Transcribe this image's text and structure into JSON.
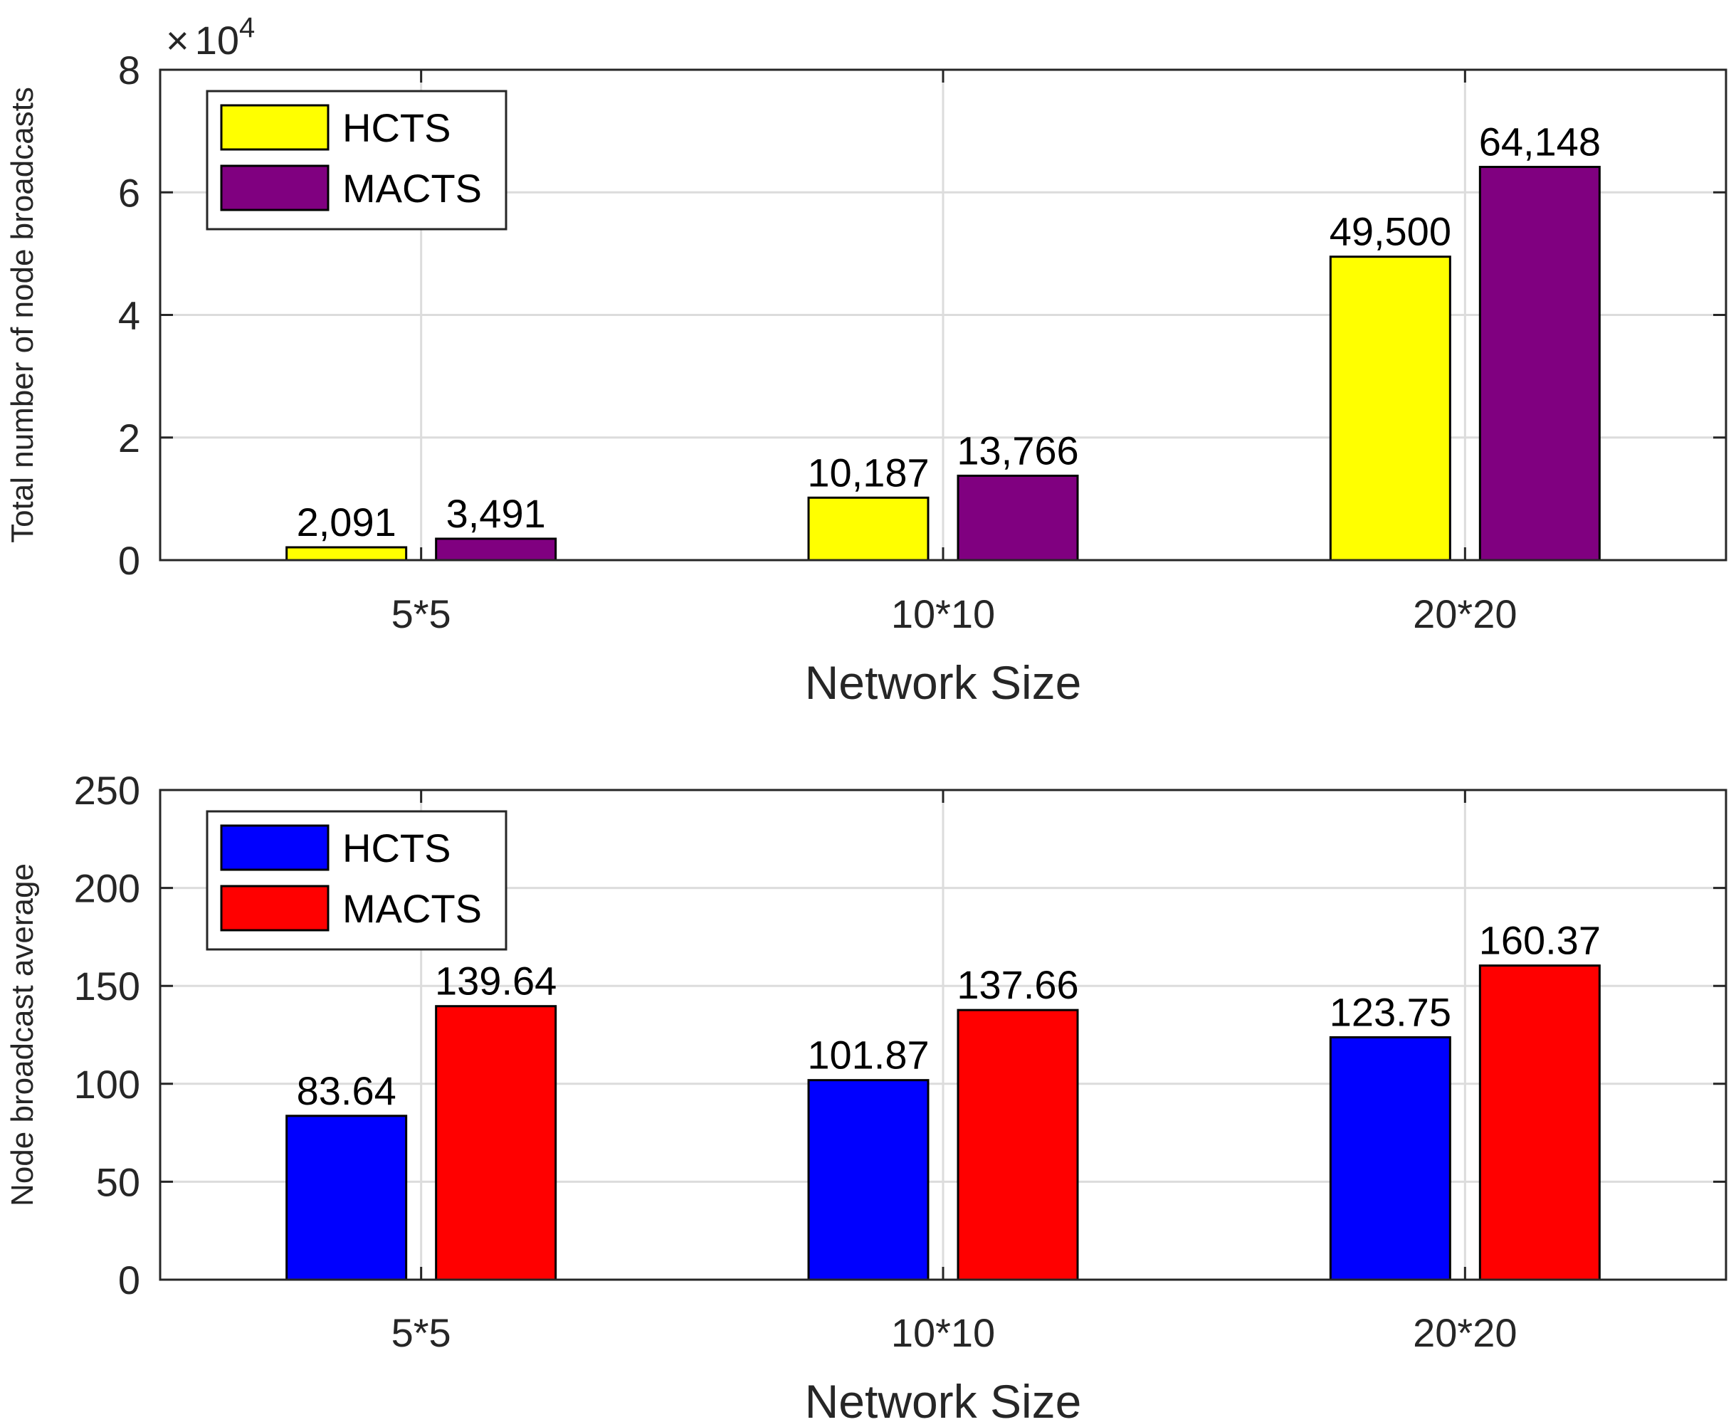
{
  "chart_data": [
    {
      "type": "bar",
      "title": "",
      "categories": [
        "5*5",
        "10*10",
        "20*20"
      ],
      "series": [
        {
          "name": "HCTS",
          "color": "#ffff00",
          "values": [
            2091,
            10187,
            49500
          ],
          "labels": [
            "2,091",
            "10,187",
            "49,500"
          ]
        },
        {
          "name": "MACTS",
          "color": "#800080",
          "values": [
            3491,
            13766,
            64148
          ],
          "labels": [
            "3,491",
            "13,766",
            "64,148"
          ]
        }
      ],
      "xlabel": "Network Size",
      "ylabel": "Total number of node broadcasts",
      "ylim": [
        0,
        80000
      ],
      "yticks": [
        0,
        20000,
        40000,
        60000,
        80000
      ],
      "ytick_labels": [
        "0",
        "2",
        "4",
        "6",
        "8"
      ],
      "exponent_multiplier": "×",
      "exponent_base": "10",
      "exponent_power": "4",
      "grid": true,
      "legend_position": "top-left"
    },
    {
      "type": "bar",
      "title": "",
      "categories": [
        "5*5",
        "10*10",
        "20*20"
      ],
      "series": [
        {
          "name": "HCTS",
          "color": "#0000ff",
          "values": [
            83.64,
            101.87,
            123.75
          ],
          "labels": [
            "83.64",
            "101.87",
            "123.75"
          ]
        },
        {
          "name": "MACTS",
          "color": "#ff0000",
          "values": [
            139.64,
            137.66,
            160.37
          ],
          "labels": [
            "139.64",
            "137.66",
            "160.37"
          ]
        }
      ],
      "xlabel": "Network Size",
      "ylabel": "Node broadcast average",
      "ylim": [
        0,
        250
      ],
      "yticks": [
        0,
        50,
        100,
        150,
        200,
        250
      ],
      "ytick_labels": [
        "0",
        "50",
        "100",
        "150",
        "200",
        "250"
      ],
      "grid": true,
      "legend_position": "top-left"
    }
  ]
}
